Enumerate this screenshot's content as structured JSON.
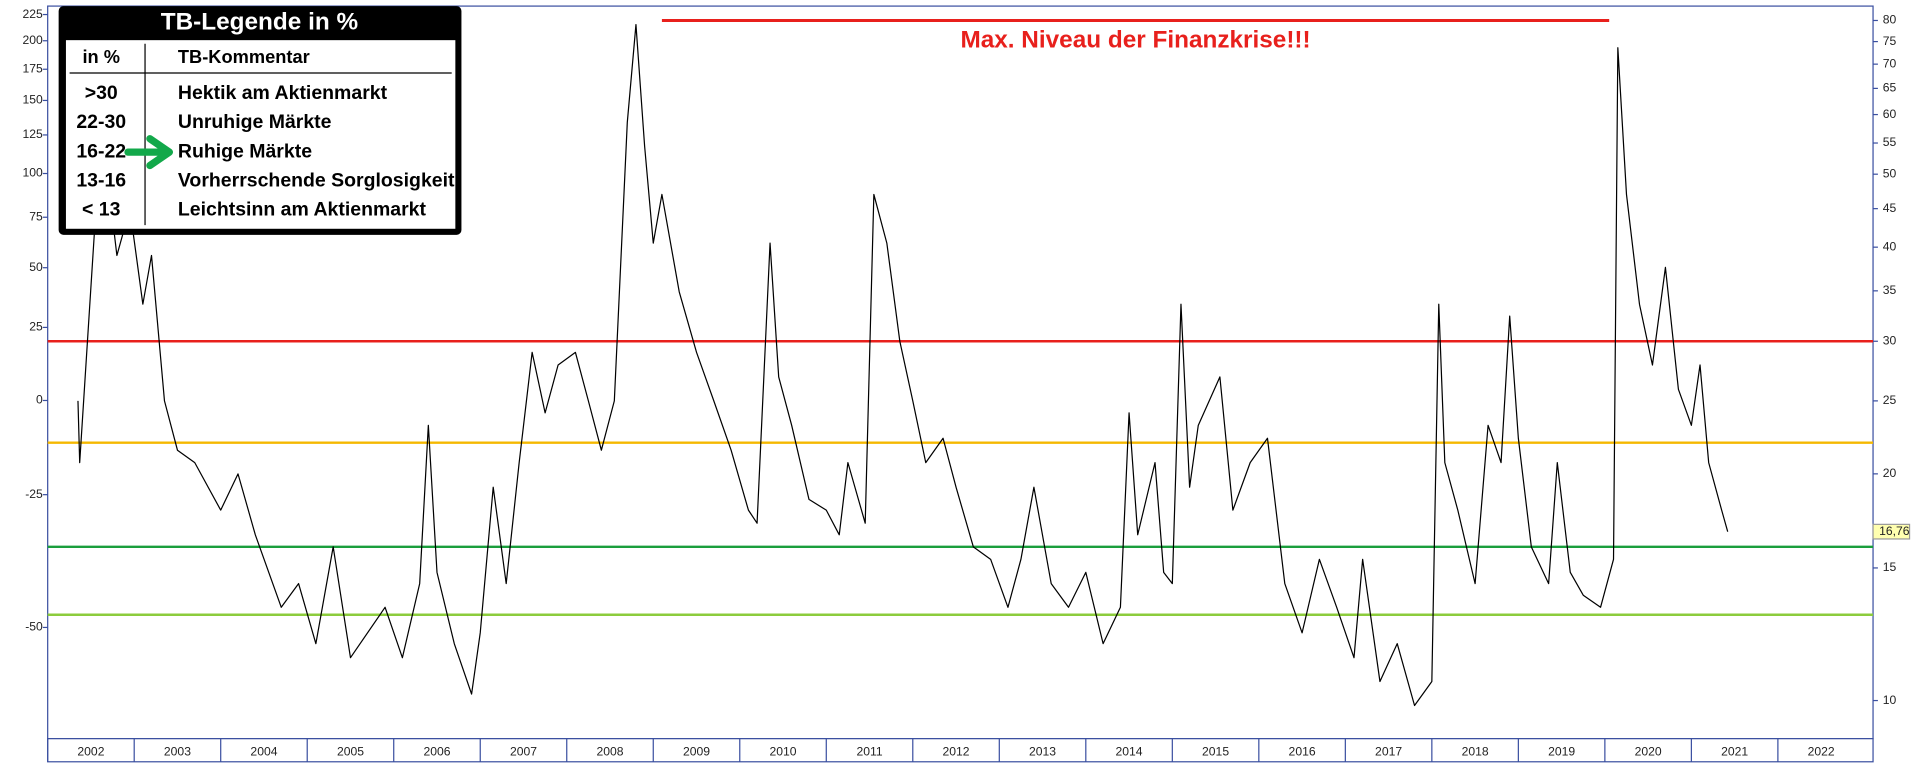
{
  "chart_data": {
    "type": "line",
    "xlim": [
      2002,
      2023.1
    ],
    "xticks": [
      2002,
      2003,
      2004,
      2005,
      2006,
      2007,
      2008,
      2009,
      2010,
      2011,
      2012,
      2013,
      2014,
      2015,
      2016,
      2017,
      2018,
      2019,
      2020,
      2021,
      2022
    ],
    "ylim": [
      8.9,
      83.6
    ],
    "log_y": true,
    "yticks": [
      80,
      75,
      70,
      65,
      60,
      55,
      50,
      45,
      40,
      35,
      30,
      25,
      20,
      15,
      10
    ],
    "y2lim": [
      -64.4,
      233.5
    ],
    "y2_log_offset": 100,
    "y2ticks": [
      225,
      200,
      175,
      150,
      125,
      100,
      75,
      50,
      25,
      0,
      -25,
      -50
    ],
    "series": [
      {
        "color": "#000000",
        "x": [
          2002.35,
          2002.37,
          2002.55,
          2002.7,
          2002.8,
          2002.95,
          2003.1,
          2003.2,
          2003.35,
          2003.5,
          2003.7,
          2004.0,
          2004.2,
          2004.4,
          2004.7,
          2004.9,
          2005.1,
          2005.3,
          2005.5,
          2005.9,
          2006.1,
          2006.3,
          2006.4,
          2006.5,
          2006.7,
          2006.9,
          2007.0,
          2007.15,
          2007.3,
          2007.45,
          2007.6,
          2007.75,
          2007.9,
          2008.1,
          2008.25,
          2008.4,
          2008.55,
          2008.7,
          2008.8,
          2008.9,
          2009.0,
          2009.1,
          2009.3,
          2009.5,
          2009.7,
          2009.9,
          2010.1,
          2010.2,
          2010.35,
          2010.45,
          2010.6,
          2010.8,
          2011.0,
          2011.15,
          2011.25,
          2011.45,
          2011.55,
          2011.7,
          2011.85,
          2012.0,
          2012.15,
          2012.35,
          2012.5,
          2012.7,
          2012.9,
          2013.1,
          2013.25,
          2013.4,
          2013.6,
          2013.8,
          2014.0,
          2014.2,
          2014.4,
          2014.5,
          2014.6,
          2014.8,
          2014.9,
          2015.0,
          2015.1,
          2015.2,
          2015.3,
          2015.55,
          2015.7,
          2015.9,
          2016.1,
          2016.3,
          2016.5,
          2016.7,
          2016.9,
          2017.1,
          2017.2,
          2017.4,
          2017.6,
          2017.8,
          2018.0,
          2018.08,
          2018.15,
          2018.3,
          2018.5,
          2018.65,
          2018.8,
          2018.9,
          2019.0,
          2019.15,
          2019.35,
          2019.45,
          2019.6,
          2019.75,
          2019.95,
          2020.1,
          2020.15,
          2020.25,
          2020.4,
          2020.55,
          2020.7,
          2020.85,
          2021.0,
          2021.1,
          2021.2,
          2021.35,
          2021.42
        ],
        "values": [
          25,
          20.7,
          43.6,
          48.8,
          39,
          45,
          33.6,
          39,
          25,
          21.5,
          20.7,
          17.9,
          20,
          16.6,
          13.3,
          14.3,
          11.9,
          16,
          11.4,
          13.3,
          11.4,
          14.3,
          23.2,
          14.8,
          11.9,
          10.2,
          12.3,
          19.2,
          14.3,
          20.7,
          29,
          24.1,
          27.9,
          29,
          25,
          21.5,
          25,
          58.6,
          79,
          54.5,
          40.5,
          47,
          34.9,
          29,
          25,
          21.5,
          17.9,
          17.2,
          40.5,
          26.9,
          23.2,
          18.5,
          17.9,
          16.6,
          20.7,
          17.2,
          47,
          40.5,
          30,
          25,
          20.7,
          22.3,
          19.2,
          16,
          15.4,
          13.3,
          15.4,
          19.2,
          14.3,
          13.3,
          14.8,
          11.9,
          13.3,
          24.1,
          16.6,
          20.7,
          14.8,
          14.3,
          33.6,
          19.2,
          23.2,
          26.9,
          17.9,
          20.7,
          22.3,
          14.3,
          12.3,
          15.4,
          13.3,
          11.4,
          15.4,
          10.6,
          11.9,
          9.85,
          10.6,
          33.6,
          20.7,
          17.9,
          14.3,
          23.2,
          20.7,
          32.4,
          22.3,
          16,
          14.3,
          20.7,
          14.8,
          13.8,
          13.3,
          15.4,
          73.6,
          47,
          33.6,
          27.9,
          37.6,
          25.9,
          23.2,
          27.9,
          20.7,
          17.9,
          16.76
        ]
      }
    ],
    "current": {
      "value": 16.76,
      "label": "16,76"
    },
    "levels": [
      {
        "value": 30,
        "color": "#e8201c"
      },
      {
        "value": 22,
        "color": "#f5b800"
      },
      {
        "value": 16,
        "color": "#1a9e3c"
      },
      {
        "value": 13,
        "color": "#8ccc3c"
      }
    ],
    "annotation": {
      "text": "Max. Niveau der Finanzkrise!!!",
      "value": 80,
      "x": [
        2009.1,
        2020.05
      ],
      "color": "#e8201c"
    },
    "legend": {
      "title": "TB-Legende in %",
      "headers": [
        "in %",
        "TB-Kommentar"
      ],
      "rows": [
        [
          ">30",
          "Hektik am Aktienmarkt"
        ],
        [
          "22-30",
          "Unruhige Märkte"
        ],
        [
          "16-22",
          "Ruhige Märkte"
        ],
        [
          "13-16",
          "Vorherrschende Sorglosigkeit"
        ],
        [
          "< 13",
          "Leichtsinn am Aktienmarkt"
        ]
      ]
    }
  }
}
